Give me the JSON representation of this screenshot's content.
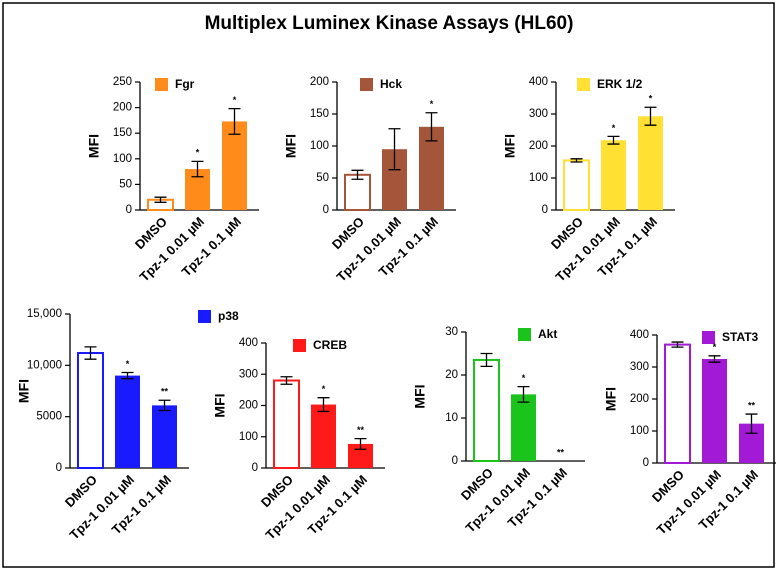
{
  "title": "Multiplex Luminex Kinase Assays (HL60)",
  "chart_data": [
    {
      "type": "bar",
      "ylabel": "MFI",
      "categories": [
        "DMSO",
        "Tpz-1 0.01 µM",
        "Tpz-1 0.1 µM"
      ],
      "series": [
        {
          "name": "Fgr",
          "color": "#ff8c1a",
          "values": [
            20,
            80,
            173
          ],
          "errors": [
            5,
            15,
            25
          ],
          "annotations": [
            null,
            "*",
            "*"
          ],
          "hollow": [
            true,
            false,
            false
          ]
        }
      ],
      "ylim": [
        0,
        250
      ],
      "yticks": [
        0,
        50,
        100,
        150,
        200,
        250
      ]
    },
    {
      "type": "bar",
      "ylabel": "MFI",
      "categories": [
        "DMSO",
        "Tpz-1 0.01 µM",
        "Tpz-1 0.1 µM"
      ],
      "series": [
        {
          "name": "Hck",
          "color": "#a5553a",
          "values": [
            55,
            95,
            130
          ],
          "errors": [
            7,
            32,
            22
          ],
          "annotations": [
            null,
            null,
            "*"
          ],
          "hollow": [
            true,
            false,
            false
          ]
        }
      ],
      "ylim": [
        0,
        200
      ],
      "yticks": [
        0,
        50,
        100,
        150,
        200
      ]
    },
    {
      "type": "bar",
      "ylabel": "MFI",
      "categories": [
        "DMSO",
        "Tpz-1 0.01 µM",
        "Tpz-1 0.1 µM"
      ],
      "series": [
        {
          "name": "ERK 1/2",
          "color": "#ffe033",
          "values": [
            155,
            218,
            293
          ],
          "errors": [
            5,
            12,
            28
          ],
          "annotations": [
            null,
            "*",
            "*"
          ],
          "hollow": [
            true,
            false,
            false
          ]
        }
      ],
      "ylim": [
        0,
        400
      ],
      "yticks": [
        0,
        100,
        200,
        300,
        400
      ]
    },
    {
      "type": "bar",
      "ylabel": "MFI",
      "categories": [
        "DMSO",
        "Tpz-1 0.01 µM",
        "Tpz-1 0.1 µM"
      ],
      "series": [
        {
          "name": "p38",
          "color": "#1a1aff",
          "values": [
            11200,
            9000,
            6100
          ],
          "errors": [
            600,
            300,
            500
          ],
          "annotations": [
            null,
            "*",
            "**"
          ],
          "hollow": [
            true,
            false,
            false
          ]
        }
      ],
      "ylim": [
        0,
        15000
      ],
      "yticks": [
        0,
        5000,
        {
          "value": 10000,
          "label": "10,000"
        },
        {
          "value": 15000,
          "label": "15,000"
        }
      ]
    },
    {
      "type": "bar",
      "ylabel": "MFI",
      "categories": [
        "DMSO",
        "Tpz-1 0.01 µM",
        "Tpz-1 0.1 µM"
      ],
      "series": [
        {
          "name": "CREB",
          "color": "#ff1a1a",
          "values": [
            280,
            203,
            77
          ],
          "errors": [
            12,
            22,
            17
          ],
          "annotations": [
            null,
            "*",
            "**"
          ],
          "hollow": [
            true,
            false,
            false
          ]
        }
      ],
      "ylim": [
        0,
        400
      ],
      "yticks": [
        0,
        100,
        200,
        300,
        400
      ]
    },
    {
      "type": "bar",
      "ylabel": "MFI",
      "categories": [
        "DMSO",
        "Tpz-1 0.01 µM",
        "Tpz-1 0.1 µM"
      ],
      "series": [
        {
          "name": "Akt",
          "color": "#1ac41a",
          "values": [
            23.5,
            15.5,
            0
          ],
          "errors": [
            1.5,
            1.8,
            0
          ],
          "annotations": [
            null,
            "*",
            "**"
          ],
          "hollow": [
            true,
            false,
            false
          ]
        }
      ],
      "ylim": [
        0,
        30
      ],
      "yticks": [
        0,
        10,
        20,
        30
      ]
    },
    {
      "type": "bar",
      "ylabel": "MFI",
      "categories": [
        "DMSO",
        "Tpz-1 0.01 µM",
        "Tpz-1 0.1 µM"
      ],
      "series": [
        {
          "name": "STAT3",
          "color": "#a31ad6",
          "values": [
            370,
            325,
            123
          ],
          "errors": [
            8,
            10,
            30
          ],
          "annotations": [
            null,
            "*",
            "**"
          ],
          "hollow": [
            true,
            false,
            false
          ]
        }
      ],
      "ylim": [
        0,
        400
      ],
      "yticks": [
        0,
        100,
        200,
        300,
        400
      ]
    }
  ]
}
